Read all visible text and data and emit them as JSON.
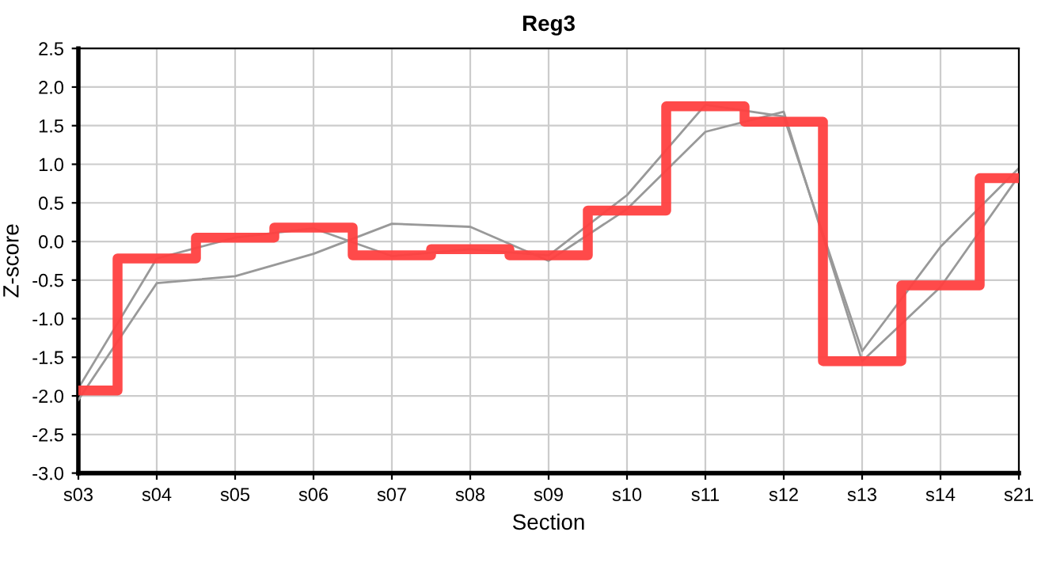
{
  "chart_data": {
    "type": "line",
    "title": "Reg3",
    "xlabel": "Section",
    "ylabel": "Z-score",
    "categories": [
      "s03",
      "s04",
      "s05",
      "s06",
      "s07",
      "s08",
      "s09",
      "s10",
      "s11",
      "s12",
      "s13",
      "s14",
      "s21"
    ],
    "series": [
      {
        "color": "#999999",
        "values": [
          -1.9,
          -0.22,
          0.05,
          0.17,
          -0.19,
          -0.1,
          -0.18,
          0.6,
          1.77,
          1.62,
          -1.42,
          -0.07,
          0.95
        ]
      },
      {
        "color": "#999999",
        "values": [
          -2.05,
          -0.54,
          -0.45,
          -0.16,
          0.23,
          0.19,
          -0.25,
          0.42,
          1.42,
          1.68,
          -1.55,
          -0.59,
          0.85
        ]
      },
      {
        "type": "step",
        "color": "#ff4040",
        "values": [
          -1.93,
          -0.22,
          0.05,
          0.18,
          -0.18,
          -0.1,
          -0.18,
          0.4,
          1.75,
          1.55,
          -1.55,
          -0.57,
          0.82
        ]
      }
    ],
    "ylim": [
      -3.0,
      2.5
    ],
    "yticks": [
      {
        "value": -3.0,
        "label": "-3.0"
      },
      {
        "value": -2.5,
        "label": "-2.5"
      },
      {
        "value": -2.0,
        "label": "-2.0"
      },
      {
        "value": -1.5,
        "label": "-1.5"
      },
      {
        "value": -1.0,
        "label": "-1.0"
      },
      {
        "value": -0.5,
        "label": "-0.5"
      },
      {
        "value": 0.0,
        "label": "0.0"
      },
      {
        "value": 0.5,
        "label": "0.5"
      },
      {
        "value": 1.0,
        "label": "1.0"
      },
      {
        "value": 1.5,
        "label": "1.5"
      },
      {
        "value": 2.0,
        "label": "2.0"
      },
      {
        "value": 2.5,
        "label": "2.5"
      }
    ],
    "grid": true,
    "legend": false
  }
}
